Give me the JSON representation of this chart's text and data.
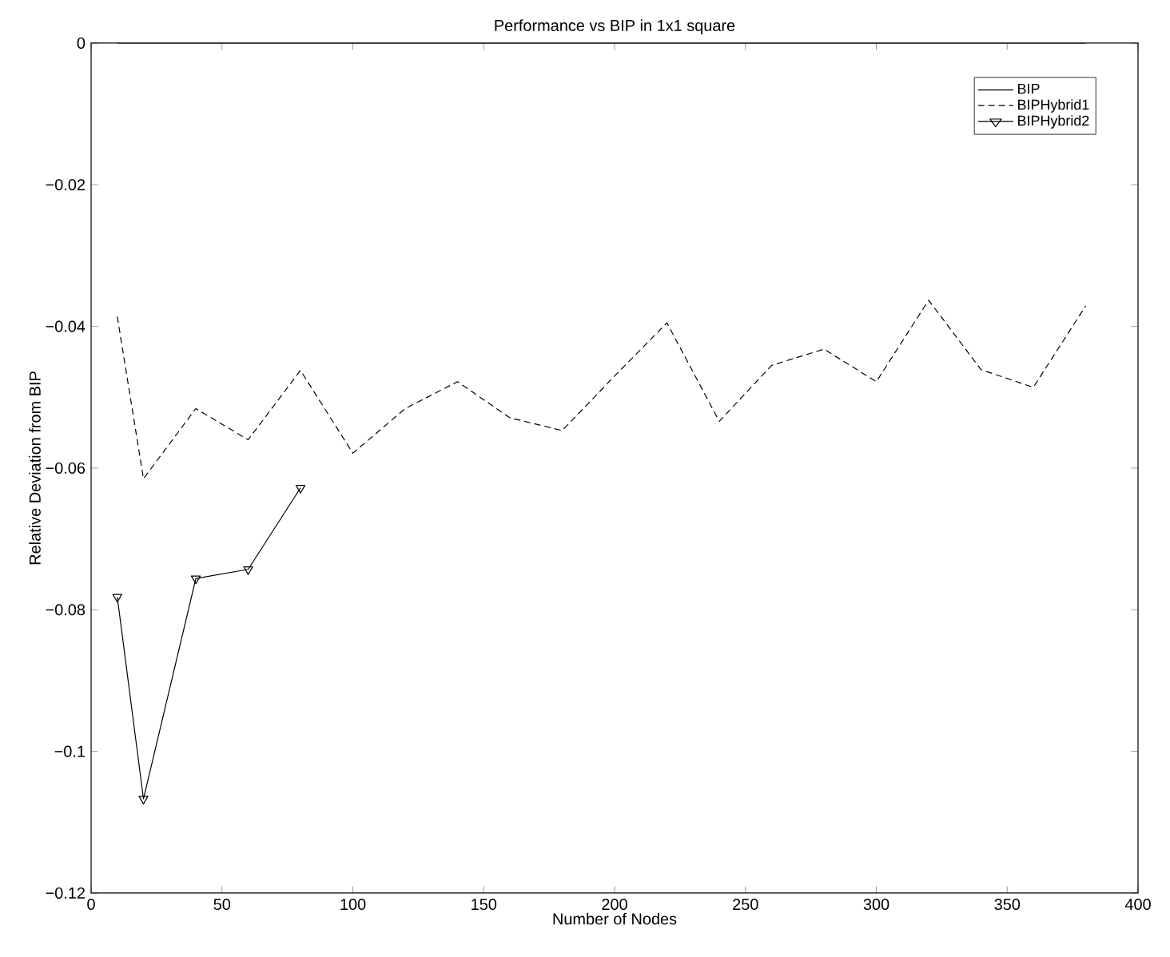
{
  "chart_data": {
    "type": "line",
    "title": "Performance vs BIP in 1x1 square",
    "xlabel": "Number of Nodes",
    "ylabel": "Relative Deviation from BIP",
    "series": [
      {
        "name": "BIP",
        "color": "#000000",
        "line_style": "solid",
        "marker": "none",
        "x": [
          10,
          20,
          40,
          60,
          80,
          100,
          120,
          140,
          160,
          180,
          200,
          220,
          240,
          260,
          280,
          300,
          320,
          340,
          360,
          380
        ],
        "values": [
          0,
          0,
          0,
          0,
          0,
          0,
          0,
          0,
          0,
          0,
          0,
          0,
          0,
          0,
          0,
          0,
          0,
          0,
          0,
          0
        ]
      },
      {
        "name": "BIPHybrid1",
        "color": "#000000",
        "line_style": "dashed",
        "marker": "none",
        "x": [
          10,
          20,
          40,
          60,
          80,
          100,
          120,
          140,
          160,
          180,
          200,
          220,
          240,
          260,
          280,
          300,
          320,
          340,
          360,
          380
        ],
        "values": [
          -0.0386,
          -0.0615,
          -0.0516,
          -0.056,
          -0.0462,
          -0.0579,
          -0.0516,
          -0.0478,
          -0.0529,
          -0.0547,
          -0.047,
          -0.0395,
          -0.0534,
          -0.0455,
          -0.0432,
          -0.0478,
          -0.0363,
          -0.0461,
          -0.0486,
          -0.0371
        ]
      },
      {
        "name": "BIPHybrid2",
        "color": "#000000",
        "line_style": "solid",
        "marker": "triangle",
        "x": [
          10,
          20,
          40,
          60,
          80
        ],
        "values": [
          -0.0782,
          -0.1067,
          -0.0756,
          -0.0743,
          -0.0628
        ]
      }
    ],
    "xlim": [
      0,
      400
    ],
    "xticks": [
      0,
      50,
      100,
      150,
      200,
      250,
      300,
      350,
      400
    ],
    "ylim": [
      -0.12,
      0
    ],
    "yticks": [
      {
        "value": -0.12,
        "label": "−0.12"
      },
      {
        "value": -0.1,
        "label": "−0.1"
      },
      {
        "value": -0.08,
        "label": "−0.08"
      },
      {
        "value": -0.06,
        "label": "−0.06"
      },
      {
        "value": -0.04,
        "label": "−0.04"
      },
      {
        "value": -0.02,
        "label": "−0.02"
      },
      {
        "value": 0,
        "label": "0"
      }
    ],
    "grid": false,
    "legend": "top right"
  }
}
